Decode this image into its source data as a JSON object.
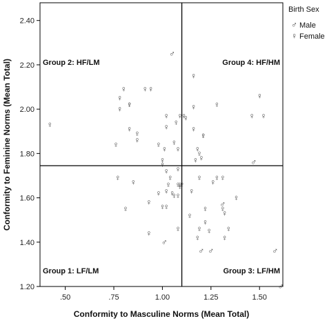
{
  "chart_data": {
    "type": "scatter",
    "title": "",
    "xlabel": "Conformity to Masculine Norms (Mean Total)",
    "ylabel": "Conformity to Feminine Norms (Mean Total)",
    "xlim": [
      0.37,
      1.62
    ],
    "ylim": [
      1.2,
      2.48
    ],
    "x_ticks": [
      ".50",
      ".75",
      "1.00",
      "1.25",
      "1.50"
    ],
    "x_tick_values": [
      0.5,
      0.75,
      1.0,
      1.25,
      1.5
    ],
    "y_ticks": [
      "1.20",
      "1.40",
      "1.60",
      "1.80",
      "2.00",
      "2.20",
      "2.40"
    ],
    "y_tick_values": [
      1.2,
      1.4,
      1.6,
      1.8,
      2.0,
      2.2,
      2.4
    ],
    "reference_lines": {
      "x": 1.1,
      "y": 1.745
    },
    "grid": false,
    "legend": {
      "title": "Birth Sex",
      "placement": "top-right-outside",
      "entries": [
        {
          "label": "Male",
          "symbol": "♂"
        },
        {
          "label": "Female",
          "symbol": "♀"
        }
      ]
    },
    "annotations": [
      {
        "text": "Group 2: HF/LM",
        "quadrant": "top-left"
      },
      {
        "text": "Group 4: HF/HM",
        "quadrant": "top-right"
      },
      {
        "text": "Group 1: LF/LM",
        "quadrant": "bottom-left"
      },
      {
        "text": "Group 3: LF/HM",
        "quadrant": "bottom-right"
      }
    ],
    "series": [
      {
        "name": "Male",
        "symbol": "♂",
        "points": [
          [
            1.05,
            2.25
          ],
          [
            1.47,
            1.76
          ],
          [
            1.01,
            1.4
          ],
          [
            1.31,
            1.57
          ],
          [
            1.2,
            1.36
          ],
          [
            1.25,
            1.36
          ],
          [
            1.58,
            1.36
          ],
          [
            1.61,
            1.2
          ]
        ]
      },
      {
        "name": "Female",
        "symbol": "♀",
        "points": [
          [
            0.42,
            1.93
          ],
          [
            0.8,
            2.09
          ],
          [
            0.78,
            2.05
          ],
          [
            0.78,
            2.0
          ],
          [
            0.83,
            2.02
          ],
          [
            0.83,
            2.02
          ],
          [
            0.91,
            2.09
          ],
          [
            0.94,
            2.09
          ],
          [
            1.16,
            2.15
          ],
          [
            1.28,
            2.02
          ],
          [
            1.5,
            2.06
          ],
          [
            1.46,
            1.97
          ],
          [
            1.52,
            1.97
          ],
          [
            1.16,
            2.01
          ],
          [
            1.02,
            1.97
          ],
          [
            1.09,
            1.97
          ],
          [
            1.11,
            1.97
          ],
          [
            1.12,
            1.96
          ],
          [
            1.07,
            1.94
          ],
          [
            0.83,
            1.91
          ],
          [
            0.87,
            1.89
          ],
          [
            0.87,
            1.86
          ],
          [
            0.76,
            1.84
          ],
          [
            1.02,
            1.92
          ],
          [
            1.16,
            1.91
          ],
          [
            1.21,
            1.88
          ],
          [
            1.21,
            1.88
          ],
          [
            1.06,
            1.85
          ],
          [
            0.98,
            1.84
          ],
          [
            1.01,
            1.82
          ],
          [
            1.08,
            1.82
          ],
          [
            1.18,
            1.82
          ],
          [
            1.19,
            1.8
          ],
          [
            1.2,
            1.78
          ],
          [
            1.17,
            1.77
          ],
          [
            1.0,
            1.77
          ],
          [
            1.0,
            1.75
          ],
          [
            1.08,
            1.73
          ],
          [
            1.02,
            1.72
          ],
          [
            1.04,
            1.69
          ],
          [
            0.77,
            1.69
          ],
          [
            0.85,
            1.67
          ],
          [
            1.03,
            1.66
          ],
          [
            1.08,
            1.66
          ],
          [
            1.09,
            1.66
          ],
          [
            1.1,
            1.66
          ],
          [
            1.09,
            1.65
          ],
          [
            1.19,
            1.69
          ],
          [
            1.28,
            1.69
          ],
          [
            1.31,
            1.69
          ],
          [
            1.26,
            1.67
          ],
          [
            1.38,
            1.6
          ],
          [
            1.15,
            1.63
          ],
          [
            0.98,
            1.62
          ],
          [
            1.02,
            1.63
          ],
          [
            1.05,
            1.62
          ],
          [
            1.06,
            1.61
          ],
          [
            1.08,
            1.61
          ],
          [
            0.93,
            1.58
          ],
          [
            0.81,
            1.55
          ],
          [
            1.0,
            1.56
          ],
          [
            1.02,
            1.56
          ],
          [
            1.22,
            1.55
          ],
          [
            1.31,
            1.55
          ],
          [
            1.32,
            1.53
          ],
          [
            1.14,
            1.52
          ],
          [
            1.22,
            1.49
          ],
          [
            1.19,
            1.46
          ],
          [
            1.24,
            1.45
          ],
          [
            1.34,
            1.46
          ],
          [
            1.08,
            1.46
          ],
          [
            0.93,
            1.44
          ],
          [
            1.18,
            1.42
          ],
          [
            1.32,
            1.42
          ]
        ]
      }
    ]
  }
}
